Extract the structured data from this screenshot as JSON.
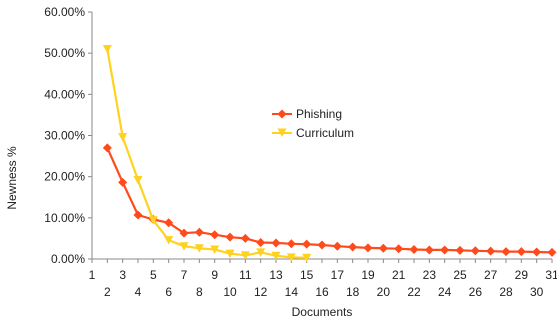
{
  "chart_data": {
    "type": "line",
    "title": "",
    "xlabel": "Documents",
    "ylabel": "Newness %",
    "xlim": [
      1,
      31
    ],
    "ylim": [
      0,
      60
    ],
    "x_ticks": [
      "1",
      "2",
      "3",
      "4",
      "5",
      "6",
      "7",
      "8",
      "9",
      "10",
      "11",
      "12",
      "13",
      "14",
      "15",
      "16",
      "17",
      "18",
      "19",
      "20",
      "21",
      "22",
      "23",
      "24",
      "25",
      "26",
      "27",
      "28",
      "29",
      "30",
      "31"
    ],
    "y_ticks": [
      "0.00%",
      "10.00%",
      "20.00%",
      "30.00%",
      "40.00%",
      "50.00%",
      "60.00%"
    ],
    "legend": {
      "placement": "center-right"
    },
    "grid": false,
    "series": [
      {
        "name": "Phishing",
        "color": "#ff4a1c",
        "marker": "diamond",
        "x": [
          2,
          3,
          4,
          5,
          6,
          7,
          8,
          9,
          10,
          11,
          12,
          13,
          14,
          15,
          16,
          17,
          18,
          19,
          20,
          21,
          22,
          23,
          24,
          25,
          26,
          27,
          28,
          29,
          30,
          31
        ],
        "values": [
          27.0,
          18.6,
          10.7,
          9.6,
          8.8,
          6.3,
          6.5,
          5.9,
          5.3,
          5.0,
          4.0,
          3.9,
          3.7,
          3.6,
          3.4,
          3.1,
          2.9,
          2.7,
          2.6,
          2.5,
          2.3,
          2.2,
          2.2,
          2.1,
          2.0,
          1.9,
          1.8,
          1.8,
          1.7,
          1.6
        ]
      },
      {
        "name": "Curriculum",
        "color": "#ffd21f",
        "marker": "triangle-down",
        "x": [
          2,
          3,
          4,
          5,
          6,
          7,
          8,
          9,
          10,
          11,
          12,
          13,
          14,
          15
        ],
        "values": [
          51.0,
          29.6,
          19.2,
          9.4,
          4.6,
          3.1,
          2.6,
          2.3,
          1.3,
          0.9,
          1.6,
          0.8,
          0.4,
          0.3
        ]
      }
    ]
  }
}
